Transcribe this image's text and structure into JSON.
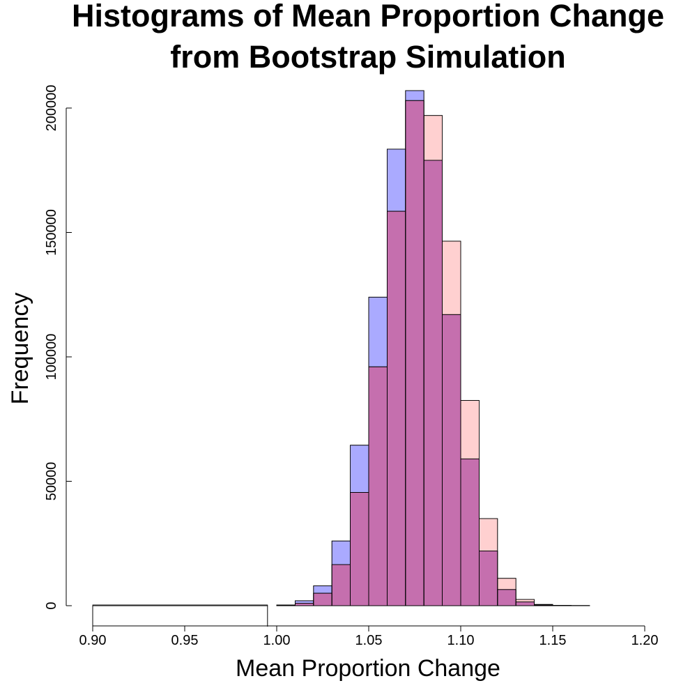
{
  "chart_data": {
    "type": "bar",
    "title": [
      "Histograms of Mean Proportion Change",
      "from Bootstrap Simulation"
    ],
    "xlabel": "Mean Proportion Change",
    "ylabel": "Frequency",
    "xlim": [
      0.9,
      1.2
    ],
    "ylim": [
      0,
      207000
    ],
    "x_ticks": [
      "0.90",
      "0.95",
      "1.00",
      "1.05",
      "1.10",
      "1.15",
      "1.20"
    ],
    "x_tick_values": [
      0.9,
      0.95,
      1.0,
      1.05,
      1.1,
      1.15,
      1.2
    ],
    "y_ticks": [
      "0",
      "50000",
      "100000",
      "150000",
      "200000"
    ],
    "y_tick_values": [
      0,
      50000,
      100000,
      150000,
      200000
    ],
    "grid": false,
    "bin_edges": [
      1.0,
      1.01,
      1.02,
      1.03,
      1.04,
      1.05,
      1.06,
      1.07,
      1.08,
      1.09,
      1.1,
      1.11,
      1.12,
      1.13,
      1.14,
      1.15,
      1.16,
      1.17
    ],
    "wide_bar": {
      "x0": 0.9,
      "x1": 0.995,
      "value": 300
    },
    "series": [
      {
        "color": "#aaaaff",
        "values": [
          300,
          2000,
          8000,
          26000,
          64500,
          124000,
          183500,
          207000,
          179000,
          117000,
          59000,
          22000,
          6500,
          1500,
          300,
          100,
          50
        ]
      },
      {
        "color": "#ffaaaa",
        "values": [
          200,
          1000,
          5000,
          16500,
          45500,
          96000,
          158500,
          203000,
          197000,
          146500,
          82500,
          35000,
          11000,
          2500,
          500,
          100,
          50
        ]
      }
    ],
    "overlap_color": "#c56fae"
  }
}
